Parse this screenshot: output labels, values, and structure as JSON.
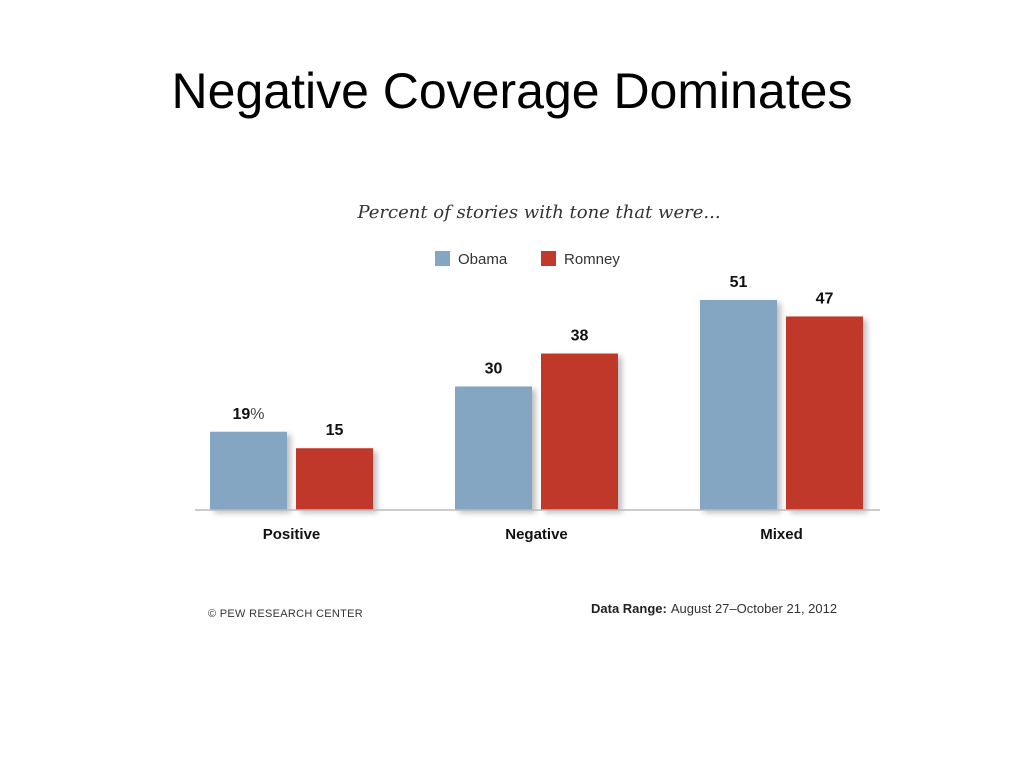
{
  "slide": {
    "title": "Negative Coverage Dominates"
  },
  "chart_data": {
    "type": "bar",
    "title": "Percent of stories with tone that were...",
    "categories": [
      "Positive",
      "Negative",
      "Mixed"
    ],
    "series": [
      {
        "name": "Obama",
        "values": [
          19,
          30,
          51
        ],
        "color": "#85a6c2"
      },
      {
        "name": "Romney",
        "values": [
          15,
          38,
          47
        ],
        "color": "#c0392b"
      }
    ],
    "value_labels": [
      [
        "19",
        "30",
        "51"
      ],
      [
        "15",
        "38",
        "47"
      ]
    ],
    "first_label_unit": "%",
    "xlabel": "",
    "ylabel": "",
    "ylim": [
      0,
      51
    ],
    "grid": false,
    "legend_position": "top-center",
    "source": "© PEW RESEARCH CENTER",
    "data_range_label": "Data Range:",
    "data_range_value": "August 27–October 21, 2012"
  }
}
